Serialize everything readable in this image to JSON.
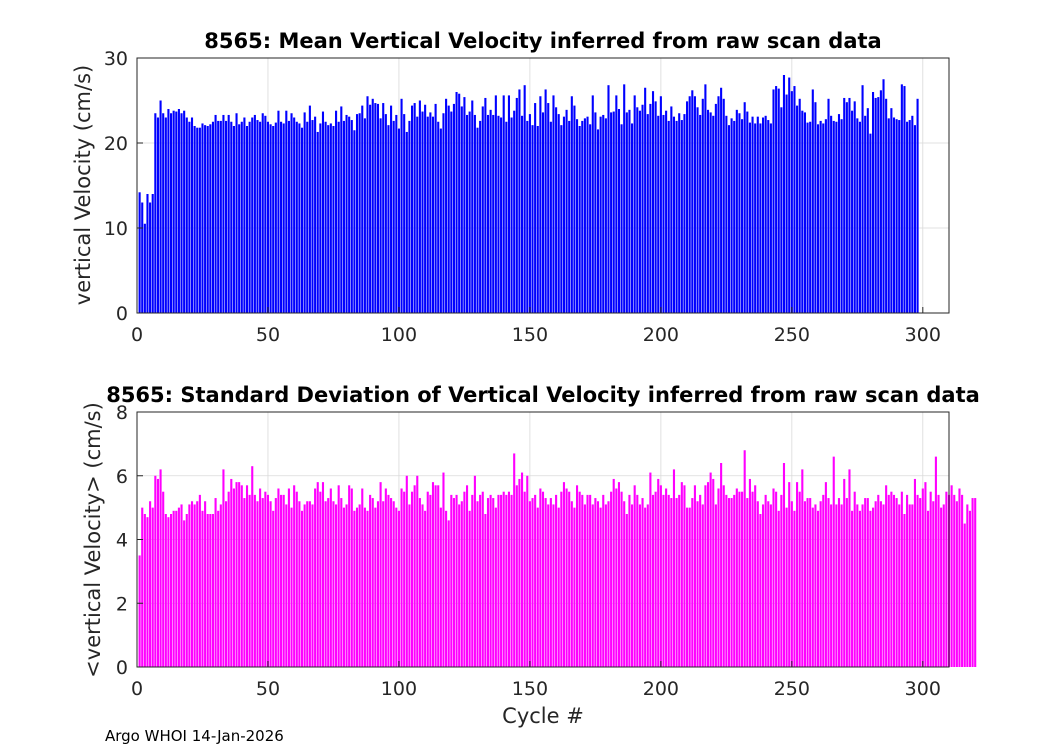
{
  "footer": "Argo WHOI 14-Jan-2026",
  "xaxis": {
    "label": "Cycle #",
    "ticks": [
      "0",
      "50",
      "100",
      "150",
      "200",
      "250",
      "300"
    ],
    "tick_values": [
      0,
      50,
      100,
      150,
      200,
      250,
      300
    ],
    "xlim": [
      0,
      310
    ]
  },
  "colors": {
    "top": "#0000ff",
    "bottom": "#ff00ff",
    "grid": "#d9d9d9",
    "axis": "#262626"
  },
  "chart_data": [
    {
      "type": "bar",
      "title": "8565: Mean Vertical Velocity inferred from raw scan data",
      "xlabel": "",
      "ylabel": "vertical Velocity (cm/s)",
      "ylim": [
        0,
        30
      ],
      "yticks": [
        "0",
        "10",
        "20",
        "30"
      ],
      "ytick_values": [
        0,
        10,
        20,
        30
      ],
      "grid": true,
      "x_start": 1,
      "values": [
        14.2,
        13,
        10.5,
        14,
        13,
        14,
        23.5,
        23,
        25,
        23.5,
        23,
        24,
        23.5,
        23.8,
        23.7,
        24,
        23.5,
        23.8,
        23,
        22.5,
        23,
        22,
        21.8,
        21.8,
        22.3,
        22.1,
        22,
        22.2,
        22.5,
        23.3,
        22.6,
        22.6,
        23.3,
        22.6,
        23.3,
        22.5,
        22,
        23.5,
        22.2,
        22.5,
        23,
        22,
        22.5,
        23,
        23.3,
        22.7,
        22.5,
        23.5,
        23.2,
        22.5,
        22.2,
        22,
        22.4,
        23.8,
        22.5,
        22.3,
        23.8,
        22.6,
        23.5,
        23,
        22.5,
        22.3,
        21.8,
        23.6,
        22.5,
        24.4,
        22.7,
        23.1,
        21.3,
        22.3,
        23.7,
        22.5,
        22.1,
        22.3,
        22,
        23.8,
        22.5,
        24.3,
        22.6,
        23.3,
        23.1,
        22.7,
        21.5,
        23.4,
        23.5,
        24.4,
        22.9,
        25.5,
        24.5,
        25.2,
        24.7,
        24.6,
        22.9,
        24.7,
        23.4,
        22.1,
        24.4,
        22.6,
        23.3,
        21.7,
        25.2,
        23.4,
        21.3,
        22.6,
        24.4,
        24.7,
        23.1,
        25,
        23.7,
        24.5,
        23.1,
        23.6,
        23.1,
        24.6,
        22.5,
        21.7,
        23.5,
        25.2,
        24.4,
        23.7,
        24.6,
        26,
        25.8,
        24.3,
        25.4,
        23.3,
        23.7,
        25,
        23.3,
        21.8,
        22.6,
        24.3,
        25.3,
        23.3,
        23.9,
        23.3,
        25.6,
        23.2,
        23,
        25.6,
        22.5,
        25.6,
        23,
        23.8,
        25.3,
        26.3,
        23.2,
        26.8,
        22.6,
        23.4,
        22.1,
        24.7,
        22,
        25.5,
        23.6,
        26.3,
        24.7,
        22.5,
        25.6,
        24.2,
        23.4,
        22.1,
        23.1,
        23.9,
        22.6,
        25.5,
        24.4,
        22.8,
        22,
        22.6,
        22.9,
        23.1,
        22.2,
        25.6,
        23.6,
        21.6,
        23.1,
        23.3,
        22.9,
        26.8,
        23.6,
        23.7,
        25.6,
        24,
        22.2,
        26.9,
        23.6,
        23.9,
        22.3,
        25.6,
        24.2,
        23.8,
        24.5,
        26.5,
        23.4,
        24.6,
        26.1,
        24.9,
        23.2,
        25.5,
        23.3,
        23.8,
        22.6,
        24.3,
        23.1,
        22.6,
        23.5,
        22.7,
        23.4,
        24.9,
        25.5,
        26.2,
        25.5,
        24.2,
        23.3,
        25.2,
        26.9,
        23.9,
        23.6,
        23.2,
        24.6,
        25.5,
        26.5,
        25.2,
        23.2,
        22.1,
        22.9,
        22.6,
        23.9,
        23.5,
        22.8,
        24.8,
        23.7,
        22.4,
        23.1,
        22.3,
        23.1,
        22.3,
        23,
        23.2,
        22.7,
        22.3,
        26.3,
        26.7,
        26.4,
        24.2,
        28,
        25.7,
        27.7,
        26.1,
        26.7,
        24.4,
        25.2,
        23.8,
        23.6,
        22.4,
        22.5,
        26.3,
        24.8,
        22.2,
        22.6,
        22.3,
        22.8,
        25.2,
        23.2,
        22.6,
        22.5,
        23.4,
        22.8,
        25.3,
        24.8,
        25.3,
        23.8,
        24.9,
        22.9,
        22.5,
        26.8,
        23.2,
        24.1,
        21.1,
        26,
        25.3,
        25.4,
        26.2,
        27.5,
        25.2,
        22.9,
        24.1,
        23,
        22.8,
        22.7,
        26.9,
        26.7,
        22.5,
        22.7,
        23.2,
        22.1,
        25.2
      ]
    },
    {
      "type": "bar",
      "title": "8565: Standard Deviation of Vertical Velocity inferred from raw scan data",
      "xlabel": "Cycle #",
      "ylabel": "<vertical Velocity> (cm/s)",
      "ylim": [
        0,
        8
      ],
      "yticks": [
        "0",
        "2",
        "4",
        "6",
        "8"
      ],
      "ytick_values": [
        0,
        2,
        4,
        6,
        8
      ],
      "grid": true,
      "x_start": 1,
      "values": [
        3.5,
        5,
        4.8,
        4.7,
        5.2,
        5,
        6,
        5.9,
        6.2,
        5.5,
        4.8,
        4.7,
        4.8,
        4.9,
        4.9,
        5,
        5.1,
        4.6,
        4.8,
        5.1,
        5.2,
        5.1,
        5.2,
        5.4,
        4.9,
        5.2,
        4.8,
        4.8,
        4.8,
        5.3,
        4.9,
        5.1,
        6.2,
        5.2,
        5.5,
        5.9,
        5.6,
        5.8,
        5.8,
        5.7,
        5.3,
        5.7,
        5.4,
        6.3,
        5.4,
        5.2,
        5.6,
        5.3,
        5.5,
        5.4,
        5.2,
        4.9,
        5.3,
        5.6,
        5.4,
        5.4,
        5.1,
        5.6,
        5,
        5.7,
        5.5,
        5.2,
        4.9,
        5.1,
        5.2,
        5.2,
        5.1,
        5.6,
        5.8,
        5.5,
        5.8,
        5.2,
        5.3,
        5.6,
        5.2,
        5.1,
        5.7,
        5.3,
        5,
        5.1,
        5.7,
        5.6,
        4.9,
        5,
        5.1,
        5.6,
        5,
        4.9,
        5.4,
        5.3,
        5,
        5.2,
        5.8,
        5.2,
        5.6,
        5.4,
        5.3,
        5.2,
        5,
        4.9,
        5.6,
        5.5,
        6,
        5.1,
        5.5,
        5.7,
        6,
        5.3,
        5.1,
        4.9,
        5.5,
        5.4,
        5.8,
        5.7,
        5.7,
        5,
        6.1,
        4.9,
        4.6,
        5.4,
        5.3,
        5.4,
        5.1,
        5.2,
        5.5,
        5.7,
        4.9,
        5.4,
        6,
        5.2,
        5.4,
        5.5,
        4.8,
        5.3,
        5.4,
        5.3,
        5,
        5.4,
        5.4,
        5.5,
        5.4,
        5.5,
        5.4,
        6.7,
        5.7,
        5.9,
        6.1,
        5.5,
        6,
        5.2,
        5.3,
        5.4,
        5,
        5.6,
        5.5,
        5.3,
        5.1,
        5.3,
        5.1,
        5.4,
        5,
        5.5,
        5.8,
        5.6,
        5.5,
        5.2,
        5,
        5.7,
        5.5,
        5.4,
        5.1,
        5.4,
        5.4,
        5.1,
        5.3,
        5.2,
        5,
        5.4,
        5.1,
        5.2,
        5.5,
        5.9,
        5.6,
        5.8,
        5.5,
        5.2,
        4.8,
        5.4,
        5.1,
        5.7,
        5.4,
        5.1,
        5.3,
        5,
        5.1,
        6.1,
        5.4,
        5.5,
        5.9,
        5.7,
        5.4,
        5.6,
        5.4,
        5.3,
        6.2,
        5.3,
        5.4,
        5.8,
        5.7,
        5,
        5,
        5.3,
        5.7,
        5.2,
        5.4,
        5.1,
        5.7,
        5.8,
        6.1,
        5.9,
        5.1,
        5.6,
        6.4,
        5.7,
        5.4,
        5.3,
        5.3,
        5.4,
        5.6,
        5.5,
        5.5,
        6.8,
        5.3,
        5.9,
        5.5,
        5.7,
        5.2,
        4.8,
        5.1,
        5.4,
        5.2,
        5.1,
        5.6,
        5.5,
        4.9,
        5.4,
        6.4,
        5,
        5.8,
        5.2,
        4.9,
        5.8,
        5.5,
        6.2,
        5.2,
        5.3,
        5.3,
        5,
        5.1,
        4.9,
        5.2,
        5.4,
        5.8,
        5.3,
        5.1,
        6.6,
        5.1,
        5.3,
        5.1,
        5.9,
        5.3,
        6.2,
        4.9,
        5.5,
        5.1,
        4.9,
        5.1,
        5.3,
        5.3,
        4.9,
        5,
        5.2,
        5.4,
        5.2,
        5.1,
        5.7,
        5.4,
        5.5,
        5.4,
        5.3,
        5.1,
        5.5,
        4.8,
        5.4,
        5.1,
        5.1,
        5.9,
        5.4,
        5.3,
        5.6,
        5.8,
        4.9,
        5.5,
        5.2,
        6.6,
        5.4,
        5,
        5.1,
        5.5,
        5.4,
        5.7,
        5.4,
        5.2,
        5.6,
        5.4,
        4.5,
        5.1,
        4.9,
        5.3,
        5.3
      ]
    }
  ]
}
